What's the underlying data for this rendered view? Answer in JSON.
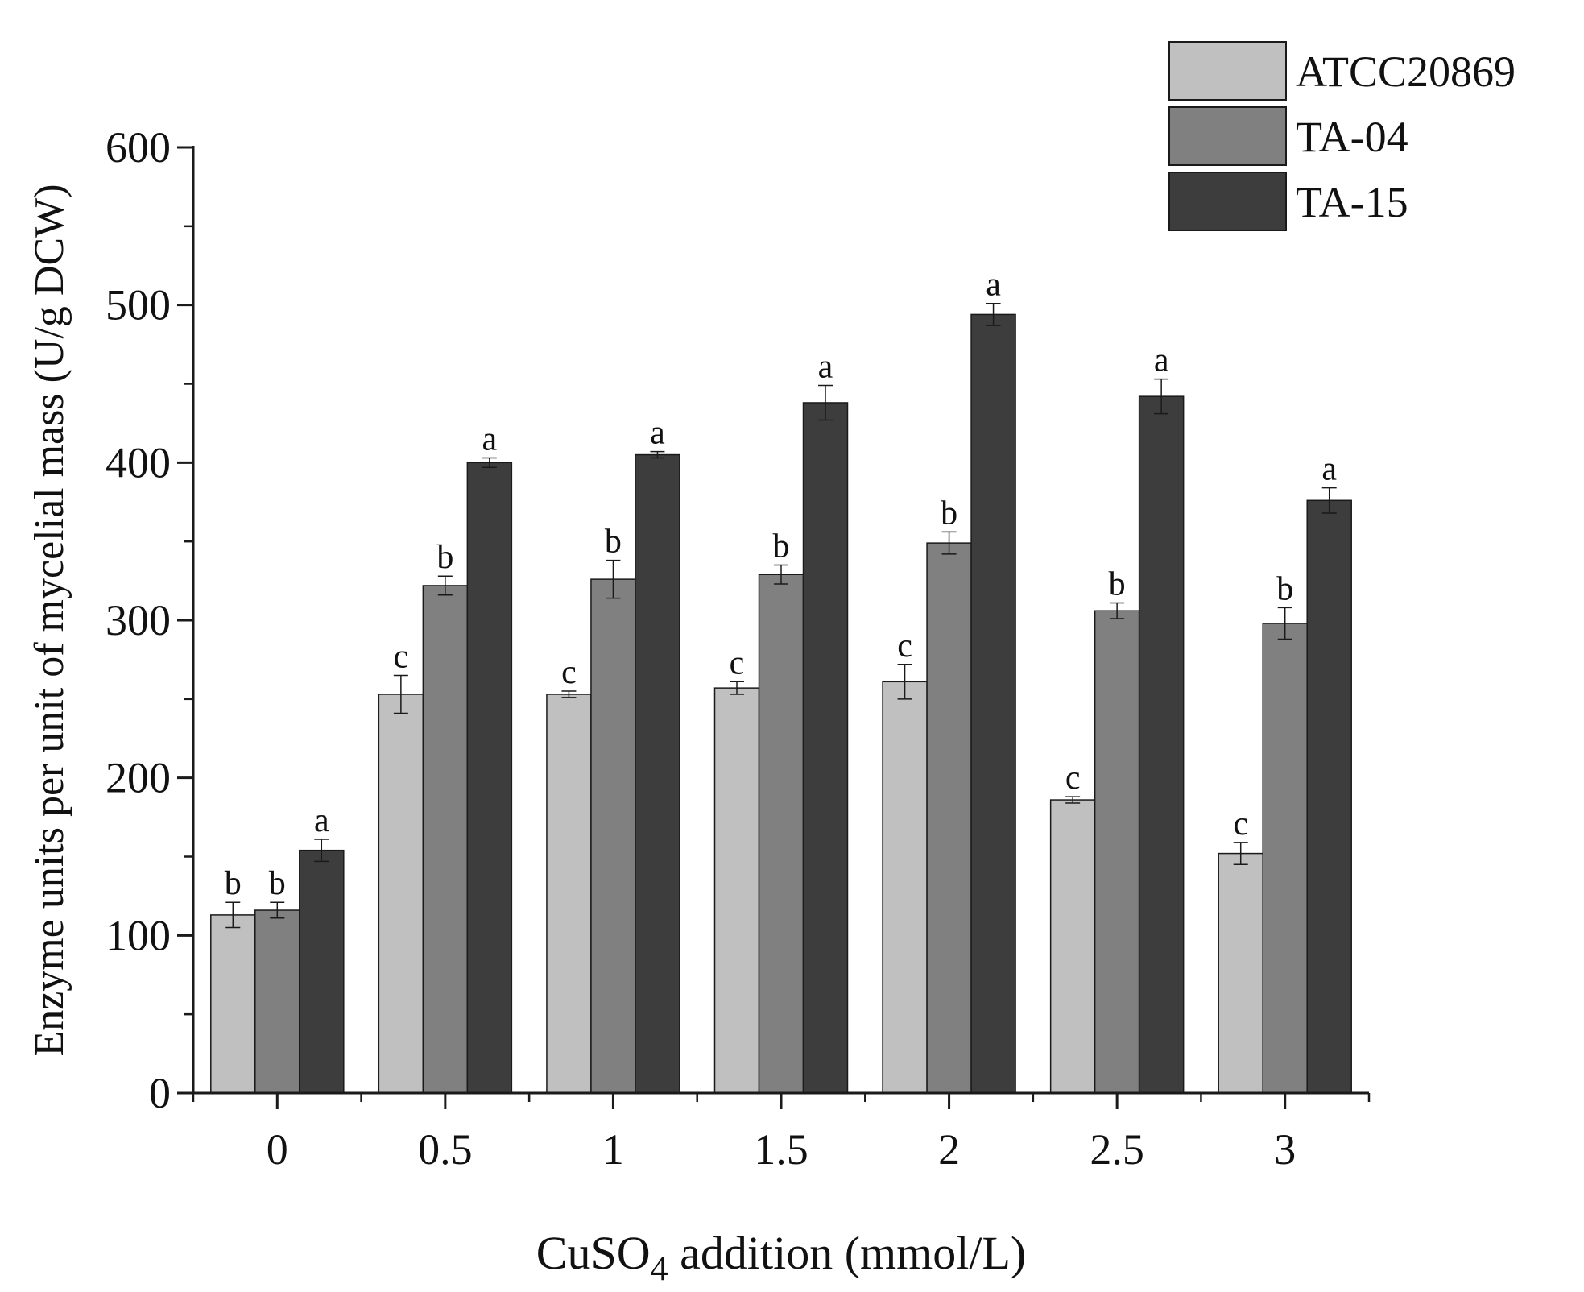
{
  "chart_data": {
    "type": "bar",
    "title": "",
    "xlabel_main": "CuSO",
    "xlabel_sub": "4",
    "xlabel_rest": " addition (mmol/L)",
    "ylabel": "Enzyme units per unit of mycelial mass (U/g DCW)",
    "categories": [
      "0",
      "0.5",
      "1",
      "1.5",
      "2",
      "2.5",
      "3"
    ],
    "ylim": [
      0,
      600
    ],
    "yticks": [
      0,
      100,
      200,
      300,
      400,
      500,
      600
    ],
    "legend_position": "top-right",
    "series": [
      {
        "name": "ATCC20869",
        "color": "#c0c0c0",
        "values": [
          113,
          253,
          253,
          257,
          261,
          186,
          152
        ],
        "errors": [
          8,
          12,
          2,
          4,
          11,
          2,
          7
        ],
        "letters": [
          "b",
          "c",
          "c",
          "c",
          "c",
          "c",
          "c"
        ]
      },
      {
        "name": "TA-04",
        "color": "#808080",
        "values": [
          116,
          322,
          326,
          329,
          349,
          306,
          298
        ],
        "errors": [
          5,
          6,
          12,
          6,
          7,
          5,
          10
        ],
        "letters": [
          "b",
          "b",
          "b",
          "b",
          "b",
          "b",
          "b"
        ]
      },
      {
        "name": "TA-15",
        "color": "#3d3d3d",
        "values": [
          154,
          400,
          405,
          438,
          494,
          442,
          376
        ],
        "errors": [
          7,
          3,
          2,
          11,
          7,
          11,
          8
        ],
        "letters": [
          "a",
          "a",
          "a",
          "a",
          "a",
          "a",
          "a"
        ]
      }
    ]
  }
}
